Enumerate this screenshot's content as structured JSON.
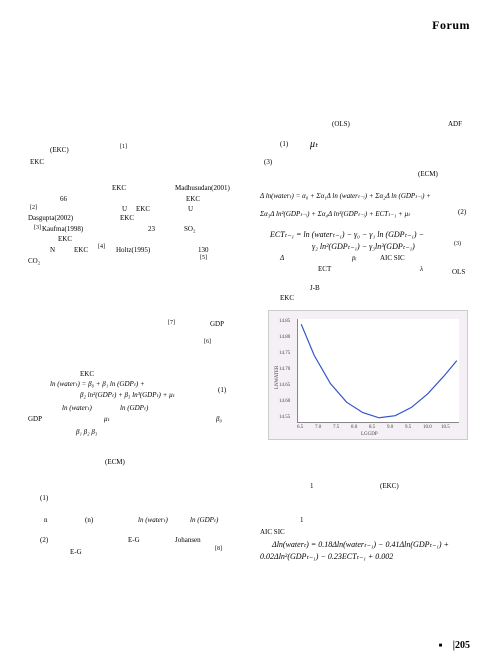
{
  "header": {
    "title": "Forum"
  },
  "footer": {
    "page_number": "|205"
  },
  "left_col": {
    "ekc1": "(EKC)",
    "sup1": "[1]",
    "ekc2": "EKC",
    "ekc3": "EKC",
    "madhusudan": "Madhusudan(2001)",
    "line66": "66",
    "ekc4": "EKC",
    "sup2": "[2]",
    "u1": "U",
    "ekc5": "EKC",
    "u2": "U",
    "dasgupta": "Dasgupta(2002)",
    "ekc6": "EKC",
    "sup3": "[3]",
    "kaufma": "Kaufma(1998)",
    "num23": "23",
    "so2": "SO₂",
    "ekc7": "EKC",
    "n_label": "N",
    "ekc8": "EKC",
    "sup4": "[4]",
    "holtz": "Holtz(1995)",
    "num130": "130",
    "co2": "CO₂",
    "sup5": "[5]",
    "sup7": "[7]",
    "gdp1": "GDP",
    "sup6": "[6]",
    "ekc9": "EKC",
    "eq1": "ln (waterₜ) = β₀ + β₁ ln (GDPₜ) +",
    "eq1b": "β₂ ln²(GDPₜ) + β₃ ln³(GDPₜ) + μₜ",
    "eq1_num": "(1)",
    "lnwater": "ln (waterₜ)",
    "lngdp": "ln (GDPₜ)",
    "gdp2": "GDP",
    "mu": "μₜ",
    "beta0": "β₀",
    "betas": "β₁ β₂ β₃",
    "ecm1": "(ECM)",
    "item1": "(1)",
    "item2": "(2)",
    "n_sub": "n",
    "n_paren": "(n)",
    "lnwater2": "ln (waterₜ)",
    "lngdp2": "ln (GDPₜ)",
    "eg1": "E-G",
    "eg2": "E-G",
    "johansen": "Johansen",
    "sup8": "[8]"
  },
  "right_col": {
    "ols": "(OLS)",
    "adf": "ADF",
    "item1": "(1)",
    "mu": "μₜ",
    "item3": "(3)",
    "ecm": "(ECM)",
    "eq2_main": "Δ ln(waterₜ) = α₀ + Σα₁Δ ln (waterₜ₋ᵢ) + Σα₂Δ ln (GDPₜ₋ᵢ) +",
    "eq2_line2": "Σα₃Δ ln²(GDPₜ₋ᵢ) + Σα₄Δ ln³(GDPₜ₋ᵢ) +  ECTₜ₋₁ + μₜ",
    "eq2_num": "(2)",
    "eq3_main": "ECTₜ₋₁ = ln (waterₜ₋₁) − γ₀ − γ₁  ln (GDPₜ₋₁) −",
    "eq3_line2": "γ₂ ln²(GDPₜ₋₁) − γ₃ln³(GDPₜ₋₁)",
    "eq3_num": "(3)",
    "delta": "Δ",
    "p_i": "pᵢ",
    "aic_sic": "AIC   SIC",
    "ect": "ECT",
    "lambda": "λ",
    "ols2": "OLS",
    "jb": "J-B",
    "ekc": "EKC",
    "fig1": "1",
    "ekc2": "(EKC)",
    "tbl1": "1",
    "aic": "AIC   SIC",
    "eq4_main": "Δln(waterₜ) = 0.18Δln(waterₜ₋₁) − 0.41Δln(GDPₜ₋₁) +",
    "eq4_line2": "0.02Δln²(GDPₜ₋₁) − 0.23ECTₜ₋₁ + 0.002"
  },
  "chart": {
    "x_label": "LGGDP",
    "y_label": "LNWATER",
    "x_ticks": [
      "6.5",
      "7.0",
      "7.5",
      "8.0",
      "8.5",
      "9.0",
      "9.5",
      "10.0",
      "10.5"
    ],
    "y_ticks": [
      "14.85",
      "14.80",
      "14.75",
      "14.70",
      "14.65",
      "14.60",
      "14.55"
    ],
    "background_color": "#f4f0f5",
    "inner_bg": "#ffffff",
    "line_color": "#3355cc",
    "axis_color": "#666666",
    "curve_points": [
      [
        0.02,
        0.05
      ],
      [
        0.1,
        0.35
      ],
      [
        0.2,
        0.62
      ],
      [
        0.3,
        0.8
      ],
      [
        0.4,
        0.9
      ],
      [
        0.5,
        0.95
      ],
      [
        0.6,
        0.93
      ],
      [
        0.7,
        0.85
      ],
      [
        0.8,
        0.72
      ],
      [
        0.9,
        0.55
      ],
      [
        0.98,
        0.4
      ]
    ]
  }
}
